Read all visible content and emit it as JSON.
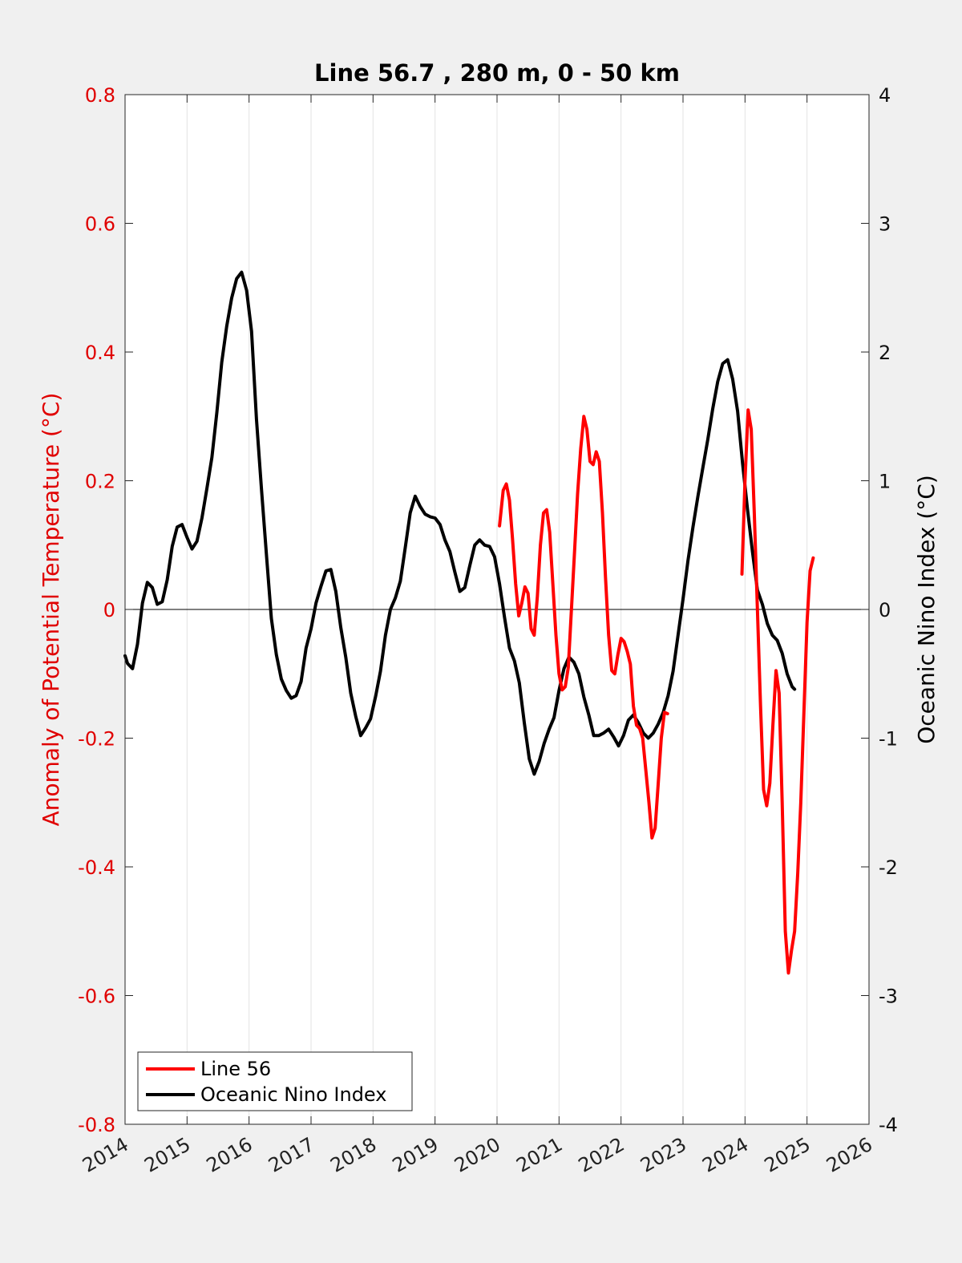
{
  "chart_data": {
    "type": "line",
    "title": "Line 56.7 , 280 m, 0 - 50 km",
    "ylabel_left": "Anomaly of Potential Temperature (°C)",
    "ylabel_right": "Oceanic Nino Index (°C)",
    "xlim": [
      2014,
      2026
    ],
    "ylim_left": [
      -0.8,
      0.8
    ],
    "ylim_right": [
      -4,
      4
    ],
    "x_ticks": [
      "2014",
      "2015",
      "2016",
      "2017",
      "2018",
      "2019",
      "2020",
      "2021",
      "2022",
      "2023",
      "2024",
      "2025",
      "2026"
    ],
    "y_left_ticks": [
      "0.8",
      "0.6",
      "0.4",
      "0.2",
      "0",
      "-0.2",
      "-0.4",
      "-0.6",
      "-0.8"
    ],
    "y_right_ticks": [
      "4",
      "3",
      "2",
      "1",
      "0",
      "-1",
      "-2",
      "-3",
      "-4"
    ],
    "grid": "vertical",
    "zero_line": true,
    "legend_position": "bottom-left",
    "colors": {
      "line56": "#ff0000",
      "oni": "#000000",
      "left_axis": "#e00000"
    },
    "series": [
      {
        "name": "Line 56",
        "axis": "left",
        "segments": [
          [
            [
              2020.04,
              0.13
            ],
            [
              2020.1,
              0.185
            ],
            [
              2020.15,
              0.195
            ],
            [
              2020.2,
              0.17
            ],
            [
              2020.25,
              0.11
            ],
            [
              2020.3,
              0.04
            ],
            [
              2020.35,
              -0.01
            ],
            [
              2020.4,
              0.01
            ],
            [
              2020.45,
              0.035
            ],
            [
              2020.5,
              0.025
            ],
            [
              2020.55,
              -0.03
            ],
            [
              2020.6,
              -0.04
            ],
            [
              2020.65,
              0.02
            ],
            [
              2020.7,
              0.1
            ],
            [
              2020.75,
              0.15
            ],
            [
              2020.8,
              0.155
            ],
            [
              2020.85,
              0.12
            ],
            [
              2020.9,
              0.04
            ],
            [
              2020.95,
              -0.04
            ],
            [
              2021.0,
              -0.1
            ],
            [
              2021.05,
              -0.125
            ],
            [
              2021.1,
              -0.12
            ],
            [
              2021.15,
              -0.09
            ],
            [
              2021.2,
              0.0
            ],
            [
              2021.25,
              0.09
            ],
            [
              2021.3,
              0.18
            ],
            [
              2021.35,
              0.25
            ],
            [
              2021.4,
              0.3
            ],
            [
              2021.45,
              0.28
            ],
            [
              2021.5,
              0.23
            ],
            [
              2021.55,
              0.225
            ],
            [
              2021.6,
              0.245
            ],
            [
              2021.65,
              0.23
            ],
            [
              2021.7,
              0.15
            ],
            [
              2021.75,
              0.05
            ],
            [
              2021.8,
              -0.04
            ],
            [
              2021.85,
              -0.095
            ],
            [
              2021.9,
              -0.1
            ],
            [
              2021.95,
              -0.07
            ],
            [
              2022.0,
              -0.045
            ],
            [
              2022.05,
              -0.05
            ],
            [
              2022.1,
              -0.065
            ],
            [
              2022.15,
              -0.085
            ],
            [
              2022.2,
              -0.15
            ],
            [
              2022.25,
              -0.18
            ],
            [
              2022.3,
              -0.185
            ],
            [
              2022.35,
              -0.2
            ],
            [
              2022.4,
              -0.25
            ],
            [
              2022.45,
              -0.3
            ],
            [
              2022.5,
              -0.355
            ],
            [
              2022.55,
              -0.34
            ],
            [
              2022.6,
              -0.27
            ],
            [
              2022.65,
              -0.2
            ],
            [
              2022.7,
              -0.16
            ],
            [
              2022.75,
              -0.162
            ]
          ],
          [
            [
              2023.95,
              0.055
            ],
            [
              2024.0,
              0.2
            ],
            [
              2024.05,
              0.31
            ],
            [
              2024.1,
              0.28
            ],
            [
              2024.15,
              0.15
            ],
            [
              2024.2,
              0.0
            ],
            [
              2024.25,
              -0.15
            ],
            [
              2024.3,
              -0.28
            ],
            [
              2024.35,
              -0.305
            ],
            [
              2024.4,
              -0.27
            ],
            [
              2024.45,
              -0.18
            ],
            [
              2024.5,
              -0.095
            ],
            [
              2024.55,
              -0.13
            ],
            [
              2024.6,
              -0.3
            ],
            [
              2024.65,
              -0.5
            ],
            [
              2024.7,
              -0.565
            ],
            [
              2024.75,
              -0.53
            ],
            [
              2024.8,
              -0.5
            ],
            [
              2024.85,
              -0.41
            ],
            [
              2024.9,
              -0.3
            ],
            [
              2024.95,
              -0.16
            ],
            [
              2025.0,
              -0.02
            ],
            [
              2025.05,
              0.06
            ],
            [
              2025.1,
              0.08
            ]
          ]
        ]
      },
      {
        "name": "Oceanic Nino Index",
        "axis": "right",
        "segments": [
          [
            [
              2014.0,
              -0.36
            ],
            [
              2014.04,
              -0.42
            ],
            [
              2014.12,
              -0.46
            ],
            [
              2014.2,
              -0.27
            ],
            [
              2014.28,
              0.05
            ],
            [
              2014.36,
              0.21
            ],
            [
              2014.44,
              0.17
            ],
            [
              2014.52,
              0.04
            ],
            [
              2014.6,
              0.06
            ],
            [
              2014.68,
              0.23
            ],
            [
              2014.76,
              0.49
            ],
            [
              2014.84,
              0.64
            ],
            [
              2014.92,
              0.66
            ],
            [
              2015.0,
              0.56
            ],
            [
              2015.08,
              0.47
            ],
            [
              2015.16,
              0.53
            ],
            [
              2015.24,
              0.71
            ],
            [
              2015.32,
              0.94
            ],
            [
              2015.4,
              1.18
            ],
            [
              2015.48,
              1.53
            ],
            [
              2015.56,
              1.92
            ],
            [
              2015.64,
              2.2
            ],
            [
              2015.72,
              2.42
            ],
            [
              2015.8,
              2.57
            ],
            [
              2015.88,
              2.62
            ],
            [
              2015.96,
              2.48
            ],
            [
              2016.04,
              2.16
            ],
            [
              2016.12,
              1.48
            ],
            [
              2016.2,
              0.94
            ],
            [
              2016.28,
              0.43
            ],
            [
              2016.36,
              -0.07
            ],
            [
              2016.44,
              -0.35
            ],
            [
              2016.52,
              -0.54
            ],
            [
              2016.6,
              -0.63
            ],
            [
              2016.68,
              -0.69
            ],
            [
              2016.76,
              -0.67
            ],
            [
              2016.84,
              -0.56
            ],
            [
              2016.92,
              -0.3
            ],
            [
              2017.0,
              -0.15
            ],
            [
              2017.08,
              0.05
            ],
            [
              2017.16,
              0.18
            ],
            [
              2017.24,
              0.3
            ],
            [
              2017.32,
              0.31
            ],
            [
              2017.4,
              0.14
            ],
            [
              2017.48,
              -0.14
            ],
            [
              2017.56,
              -0.37
            ],
            [
              2017.64,
              -0.65
            ],
            [
              2017.72,
              -0.83
            ],
            [
              2017.8,
              -0.98
            ],
            [
              2017.88,
              -0.92
            ],
            [
              2017.96,
              -0.85
            ],
            [
              2018.04,
              -0.68
            ],
            [
              2018.12,
              -0.48
            ],
            [
              2018.2,
              -0.2
            ],
            [
              2018.28,
              0.0
            ],
            [
              2018.36,
              0.09
            ],
            [
              2018.44,
              0.22
            ],
            [
              2018.52,
              0.48
            ],
            [
              2018.6,
              0.75
            ],
            [
              2018.68,
              0.88
            ],
            [
              2018.76,
              0.8
            ],
            [
              2018.84,
              0.74
            ],
            [
              2018.92,
              0.72
            ],
            [
              2019.0,
              0.71
            ],
            [
              2019.08,
              0.66
            ],
            [
              2019.16,
              0.54
            ],
            [
              2019.24,
              0.45
            ],
            [
              2019.32,
              0.29
            ],
            [
              2019.4,
              0.14
            ],
            [
              2019.48,
              0.17
            ],
            [
              2019.56,
              0.34
            ],
            [
              2019.64,
              0.5
            ],
            [
              2019.72,
              0.54
            ],
            [
              2019.8,
              0.5
            ],
            [
              2019.88,
              0.49
            ],
            [
              2019.96,
              0.41
            ],
            [
              2020.04,
              0.2
            ],
            [
              2020.12,
              -0.06
            ],
            [
              2020.2,
              -0.3
            ],
            [
              2020.28,
              -0.4
            ],
            [
              2020.36,
              -0.57
            ],
            [
              2020.44,
              -0.88
            ],
            [
              2020.52,
              -1.16
            ],
            [
              2020.6,
              -1.28
            ],
            [
              2020.68,
              -1.18
            ],
            [
              2020.76,
              -1.04
            ],
            [
              2020.84,
              -0.93
            ],
            [
              2020.92,
              -0.84
            ],
            [
              2021.0,
              -0.63
            ],
            [
              2021.08,
              -0.46
            ],
            [
              2021.16,
              -0.37
            ],
            [
              2021.24,
              -0.41
            ],
            [
              2021.32,
              -0.5
            ],
            [
              2021.4,
              -0.68
            ],
            [
              2021.48,
              -0.82
            ],
            [
              2021.56,
              -0.98
            ],
            [
              2021.64,
              -0.98
            ],
            [
              2021.72,
              -0.96
            ],
            [
              2021.8,
              -0.93
            ],
            [
              2021.88,
              -0.99
            ],
            [
              2021.96,
              -1.06
            ],
            [
              2022.04,
              -0.98
            ],
            [
              2022.12,
              -0.86
            ],
            [
              2022.2,
              -0.82
            ],
            [
              2022.28,
              -0.88
            ],
            [
              2022.36,
              -0.96
            ],
            [
              2022.44,
              -1.0
            ],
            [
              2022.52,
              -0.96
            ],
            [
              2022.6,
              -0.89
            ],
            [
              2022.68,
              -0.8
            ],
            [
              2022.76,
              -0.67
            ],
            [
              2022.84,
              -0.48
            ],
            [
              2022.92,
              -0.2
            ],
            [
              2023.0,
              0.08
            ],
            [
              2023.08,
              0.38
            ],
            [
              2023.16,
              0.64
            ],
            [
              2023.24,
              0.88
            ],
            [
              2023.32,
              1.1
            ],
            [
              2023.4,
              1.32
            ],
            [
              2023.48,
              1.56
            ],
            [
              2023.56,
              1.77
            ],
            [
              2023.64,
              1.91
            ],
            [
              2023.72,
              1.94
            ],
            [
              2023.8,
              1.79
            ],
            [
              2023.88,
              1.54
            ],
            [
              2023.96,
              1.14
            ],
            [
              2024.04,
              0.78
            ],
            [
              2024.12,
              0.45
            ],
            [
              2024.2,
              0.15
            ],
            [
              2024.28,
              0.04
            ],
            [
              2024.36,
              -0.11
            ],
            [
              2024.44,
              -0.2
            ],
            [
              2024.52,
              -0.24
            ],
            [
              2024.6,
              -0.34
            ],
            [
              2024.68,
              -0.5
            ],
            [
              2024.76,
              -0.6
            ],
            [
              2024.8,
              -0.62
            ]
          ]
        ]
      }
    ]
  }
}
